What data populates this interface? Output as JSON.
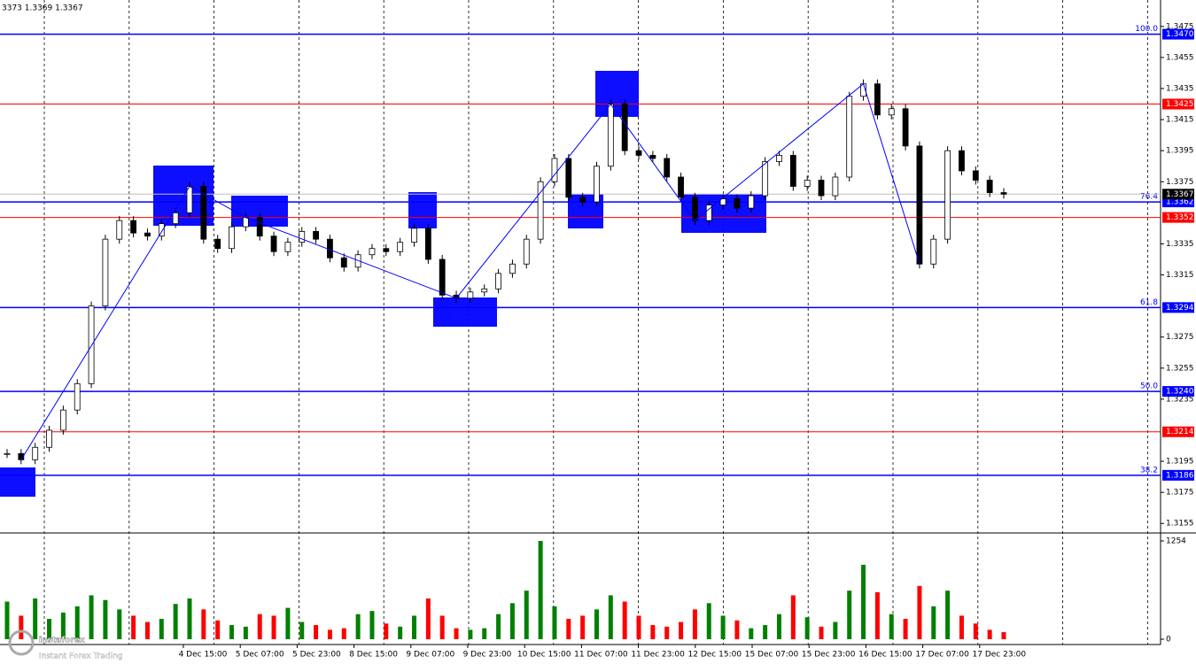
{
  "chart_data": {
    "type": "candlestick",
    "header": "3373 1.3369 1.3367",
    "closes": [
      1.32,
      1.3196,
      1.3204,
      1.3215,
      1.3228,
      1.3245,
      1.3295,
      1.3338,
      1.335,
      1.3342,
      1.334,
      1.3348,
      1.3355,
      1.3372,
      1.3338,
      1.3332,
      1.3346,
      1.3352,
      1.334,
      1.333,
      1.3336,
      1.3343,
      1.3338,
      1.3326,
      1.332,
      1.3328,
      1.3332,
      1.333,
      1.3336,
      1.3345,
      1.3325,
      1.3302,
      1.33,
      1.3304,
      1.3306,
      1.3316,
      1.3322,
      1.3338,
      1.3375,
      1.339,
      1.3365,
      1.3362,
      1.3385,
      1.3425,
      1.3395,
      1.3392,
      1.339,
      1.3378,
      1.3365,
      1.335,
      1.336,
      1.3364,
      1.3358,
      1.3366,
      1.3388,
      1.3392,
      1.3372,
      1.3376,
      1.3366,
      1.3378,
      1.343,
      1.3438,
      1.3418,
      1.3422,
      1.3398,
      1.3322,
      1.3338,
      1.3395,
      1.3382,
      1.3376,
      1.3368,
      1.3367
    ],
    "volumes": [
      480,
      300,
      520,
      260,
      340,
      420,
      560,
      500,
      380,
      300,
      220,
      260,
      450,
      520,
      380,
      240,
      180,
      160,
      320,
      300,
      400,
      220,
      180,
      120,
      140,
      320,
      360,
      200,
      160,
      300,
      520,
      300,
      140,
      120,
      140,
      320,
      460,
      620,
      1254,
      420,
      260,
      300,
      380,
      560,
      480,
      300,
      180,
      160,
      220,
      380,
      460,
      300,
      240,
      140,
      180,
      320,
      560,
      280,
      160,
      220,
      620,
      950,
      600,
      320,
      260,
      680,
      420,
      620,
      300,
      200,
      120,
      90
    ],
    "up_color": "#008000",
    "down_color": "#ff0000",
    "ylim": [
      1.315,
      1.3492
    ],
    "yticks": [
      1.3475,
      1.3455,
      1.3435,
      1.3415,
      1.3395,
      1.3375,
      1.3335,
      1.3315,
      1.3275,
      1.3255,
      1.3235,
      1.3195,
      1.3175,
      1.3155
    ],
    "vol_ylim": [
      0,
      1254
    ],
    "vol_yticks": [
      0,
      1254
    ],
    "x_labels": [
      "4 Dec 15:00",
      "5 Dec 07:00",
      "5 Dec 23:00",
      "8 Dec 15:00",
      "9 Dec 07:00",
      "9 Dec 23:00",
      "10 Dec 15:00",
      "11 Dec 07:00",
      "11 Dec 23:00",
      "12 Dec 15:00",
      "15 Dec 07:00",
      "15 Dec 23:00",
      "16 Dec 15:00",
      "17 Dec 07:00",
      "17 Dec 23:00"
    ],
    "levels": [
      {
        "price": {
          "value": 1.347,
          "label": "1.3470"
        },
        "fib": "100.0",
        "color": "#0000ff"
      },
      {
        "price": {
          "value": 1.3425,
          "label": "1.3425"
        },
        "color": "#ff0000"
      },
      {
        "price": {
          "value": 1.3362,
          "label": "1.3362"
        },
        "fib": "76.4",
        "color": "#0000ff"
      },
      {
        "price": {
          "value": 1.3352,
          "label": "1.3352"
        },
        "color": "#ff0000"
      },
      {
        "price": {
          "value": 1.3294,
          "label": "1.3294"
        },
        "fib": "61.8",
        "color": "#0000ff"
      },
      {
        "price": {
          "value": 1.324,
          "label": "1.3240"
        },
        "fib": "50.0",
        "color": "#0000ff"
      },
      {
        "price": {
          "value": 1.3214,
          "label": "1.3214"
        },
        "color": "#ff0000"
      },
      {
        "price": {
          "value": 1.3186,
          "label": "1.3186"
        },
        "fib": "38.2",
        "color": "#0000ff"
      }
    ],
    "current_price": 1.3367,
    "watermark": "instaforex",
    "watermark_sub": "Instant Forex Trading"
  }
}
